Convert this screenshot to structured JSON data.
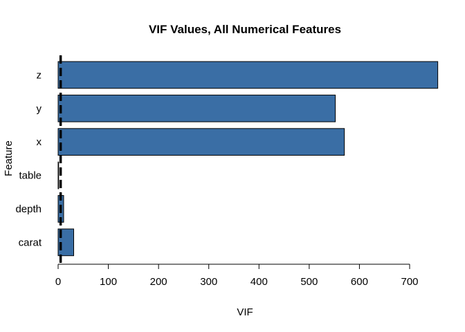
{
  "chart_data": {
    "type": "bar",
    "orientation": "horizontal",
    "title": "VIF Values, All Numerical Features",
    "xlabel": "VIF",
    "ylabel": "Feature",
    "categories": [
      "carat",
      "depth",
      "table",
      "x",
      "y",
      "z"
    ],
    "values": [
      31,
      11,
      1,
      570,
      552,
      756
    ],
    "xlim": [
      0,
      756
    ],
    "xticks": [
      0,
      100,
      200,
      300,
      400,
      500,
      600,
      700
    ],
    "reference_line": {
      "x": 5,
      "style": "dashed"
    },
    "bar_color": "#3A6EA5",
    "grid": false
  }
}
